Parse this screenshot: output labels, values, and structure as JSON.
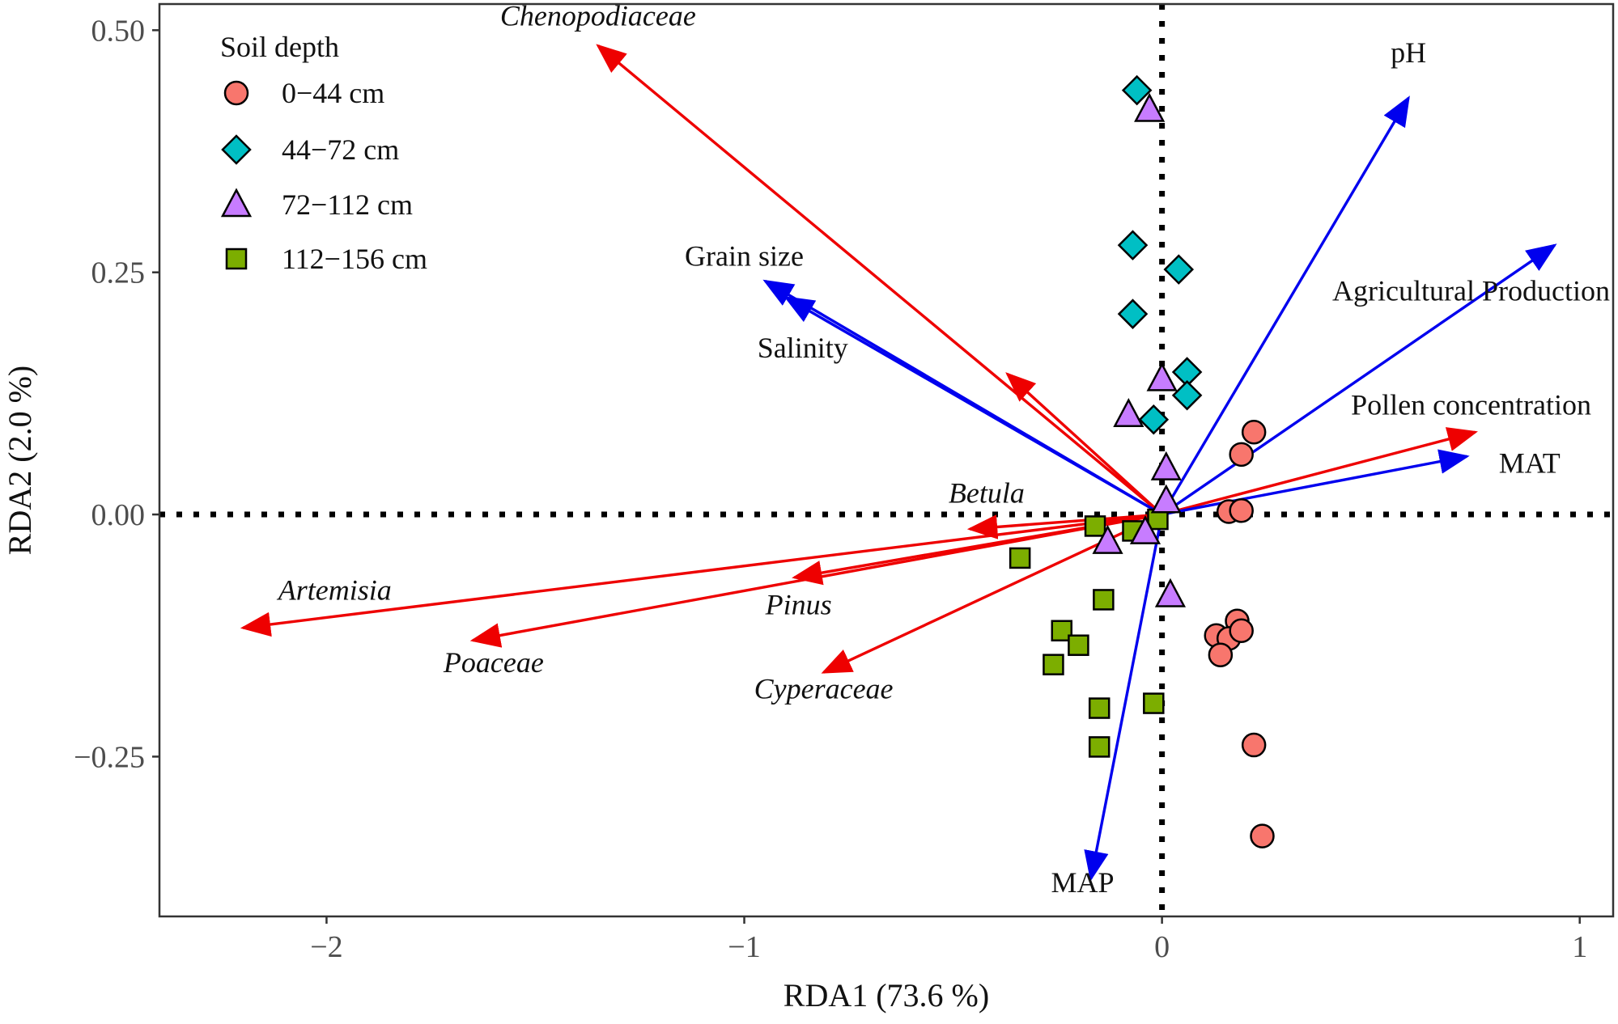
{
  "chart_data": {
    "type": "scatter",
    "xlabel": "RDA1 (73.6 %)",
    "ylabel": "RDA2 (2.0 %)",
    "xlim": [
      -2.4,
      1.08
    ],
    "ylim": [
      -0.415,
      0.527
    ],
    "xticks": [
      {
        "value": -2,
        "label": "−2"
      },
      {
        "value": -1,
        "label": "−1"
      },
      {
        "value": 0,
        "label": "0"
      },
      {
        "value": 1,
        "label": "1"
      }
    ],
    "yticks": [
      {
        "value": 0.5,
        "label": "0.50"
      },
      {
        "value": 0.25,
        "label": "0.25"
      },
      {
        "value": 0,
        "label": "0.00"
      },
      {
        "value": -0.25,
        "label": "−0.25"
      }
    ],
    "grid": false,
    "reference_lines": {
      "x": 0,
      "y": 0,
      "style": "dotted"
    },
    "legend": {
      "title": "Soil depth",
      "position": "top-left",
      "entries": [
        {
          "label": "0−44 cm",
          "shape": "circle",
          "color": "#F8766D"
        },
        {
          "label": "44−72 cm",
          "shape": "diamond",
          "color": "#00BFC4"
        },
        {
          "label": "72−112 cm",
          "shape": "triangle",
          "color": "#C77CFF"
        },
        {
          "label": "112−156 cm",
          "shape": "square",
          "color": "#7CAE00"
        }
      ]
    },
    "series": [
      {
        "name": "0−44 cm",
        "shape": "circle",
        "color": "#F8766D",
        "points": [
          [
            0.22,
            0.085
          ],
          [
            0.19,
            0.062
          ],
          [
            0.16,
            0.003
          ],
          [
            0.19,
            0.004
          ],
          [
            0.18,
            -0.11
          ],
          [
            0.13,
            -0.125
          ],
          [
            0.16,
            -0.128
          ],
          [
            0.19,
            -0.12
          ],
          [
            0.14,
            -0.145
          ],
          [
            0.22,
            -0.238
          ],
          [
            0.24,
            -0.332
          ]
        ]
      },
      {
        "name": "44−72 cm",
        "shape": "diamond",
        "color": "#00BFC4",
        "points": [
          [
            -0.06,
            0.438
          ],
          [
            -0.07,
            0.278
          ],
          [
            0.04,
            0.253
          ],
          [
            -0.07,
            0.207
          ],
          [
            0.06,
            0.147
          ],
          [
            0.06,
            0.123
          ],
          [
            -0.02,
            0.098
          ]
        ]
      },
      {
        "name": "72−112 cm",
        "shape": "triangle",
        "color": "#C77CFF",
        "points": [
          [
            -0.03,
            0.418
          ],
          [
            0.0,
            0.14
          ],
          [
            -0.08,
            0.103
          ],
          [
            0.01,
            0.048
          ],
          [
            0.01,
            0.014
          ],
          [
            -0.04,
            -0.018
          ],
          [
            -0.13,
            -0.028
          ],
          [
            0.02,
            -0.083
          ]
        ]
      },
      {
        "name": "112−156 cm",
        "shape": "square",
        "color": "#7CAE00",
        "points": [
          [
            -0.16,
            -0.012
          ],
          [
            -0.07,
            -0.017
          ],
          [
            -0.01,
            -0.005
          ],
          [
            -0.34,
            -0.045
          ],
          [
            -0.14,
            -0.088
          ],
          [
            -0.24,
            -0.12
          ],
          [
            -0.2,
            -0.135
          ],
          [
            -0.26,
            -0.155
          ],
          [
            -0.15,
            -0.2
          ],
          [
            -0.02,
            -0.195
          ],
          [
            -0.15,
            -0.24
          ]
        ]
      }
    ],
    "arrows": [
      {
        "label": "Chenopodiaceae",
        "x": -1.35,
        "y": 0.484,
        "color": "#EE0000",
        "italic": true,
        "label_x": -1.35,
        "label_y": 0.505
      },
      {
        "label": "Betula",
        "x": -0.46,
        "y": -0.015,
        "color": "#EE0000",
        "italic": true,
        "label_x": -0.42,
        "label_y": 0.012
      },
      {
        "label": "Artemisia",
        "x": -2.2,
        "y": -0.117,
        "color": "#EE0000",
        "italic": true,
        "label_x": -1.98,
        "label_y": -0.088
      },
      {
        "label": "Pinus",
        "x": -0.88,
        "y": -0.065,
        "color": "#EE0000",
        "italic": true,
        "label_x": -0.87,
        "label_y": -0.103
      },
      {
        "label": "Poaceae",
        "x": -1.65,
        "y": -0.13,
        "color": "#EE0000",
        "italic": true,
        "label_x": -1.6,
        "label_y": -0.163
      },
      {
        "label": "Cyperaceae",
        "x": -0.81,
        "y": -0.163,
        "color": "#EE0000",
        "italic": true,
        "label_x": -0.81,
        "label_y": -0.19
      },
      {
        "label": "",
        "x": -0.37,
        "y": 0.145,
        "color": "#EE0000",
        "italic": true
      },
      {
        "label": "Pollen concentration",
        "x": 0.75,
        "y": 0.085,
        "color": "#EE0000",
        "italic": false,
        "label_x": 0.74,
        "label_y": 0.103
      },
      {
        "label": "pH",
        "x": 0.59,
        "y": 0.43,
        "color": "#0000EE",
        "italic": false,
        "label_x": 0.59,
        "label_y": 0.467
      },
      {
        "label": "Agricultural Production",
        "x": 0.94,
        "y": 0.278,
        "color": "#0000EE",
        "italic": false,
        "label_x": 0.74,
        "label_y": 0.221
      },
      {
        "label": "MAT",
        "x": 0.73,
        "y": 0.06,
        "color": "#0000EE",
        "italic": false,
        "label_x": 0.88,
        "label_y": 0.043
      },
      {
        "label": "Grain size",
        "x": -0.95,
        "y": 0.241,
        "color": "#0000EE",
        "italic": false,
        "label_x": -1.0,
        "label_y": 0.257
      },
      {
        "label": "Salinity",
        "x": -0.9,
        "y": 0.224,
        "color": "#0000EE",
        "italic": false,
        "label_x": -0.86,
        "label_y": 0.162
      },
      {
        "label": "MAP",
        "x": -0.17,
        "y": -0.376,
        "color": "#0000EE",
        "italic": false,
        "label_x": -0.19,
        "label_y": -0.39
      }
    ]
  }
}
